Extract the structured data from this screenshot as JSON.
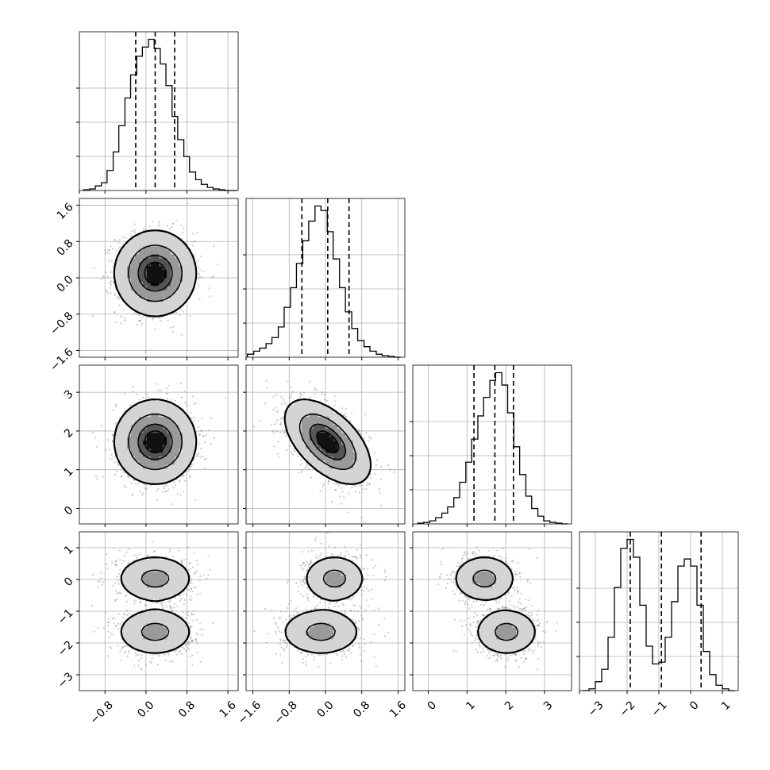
{
  "chart_data": {
    "type": "corner",
    "params": [
      {
        "name": "",
        "range": [
          -1.3,
          1.8
        ],
        "ticks": [
          -0.8,
          0.0,
          0.8,
          1.6
        ],
        "tick_labels": [
          "−0.8",
          "0.0",
          "0.8",
          "1.6"
        ],
        "hist_bins": [
          -1.22,
          -1.1,
          -0.99,
          -0.87,
          -0.76,
          -0.64,
          -0.53,
          -0.41,
          -0.3,
          -0.18,
          -0.07,
          0.05,
          0.16,
          0.28,
          0.39,
          0.51,
          0.62,
          0.74,
          0.85,
          0.97,
          1.08,
          1.2,
          1.31,
          1.43,
          1.54,
          1.66,
          1.77
        ],
        "hist_counts": [
          0.005,
          0.01,
          0.03,
          0.05,
          0.13,
          0.25,
          0.42,
          0.6,
          0.75,
          0.87,
          0.93,
          0.98,
          0.92,
          0.82,
          0.68,
          0.48,
          0.33,
          0.22,
          0.12,
          0.07,
          0.04,
          0.02,
          0.01,
          0.005,
          0.0,
          0.0
        ],
        "quantiles": [
          -0.2,
          0.18,
          0.56
        ]
      },
      {
        "name": "",
        "range": [
          -1.75,
          1.75
        ],
        "ticks": [
          -1.6,
          -0.8,
          0.0,
          0.8,
          1.6
        ],
        "tick_labels": [
          "−1.6",
          "−0.8",
          "0.0",
          "0.8",
          "1.6"
        ],
        "hist_bins": [
          -1.72,
          -1.58,
          -1.45,
          -1.31,
          -1.18,
          -1.04,
          -0.91,
          -0.77,
          -0.64,
          -0.5,
          -0.37,
          -0.23,
          -0.1,
          0.04,
          0.17,
          0.31,
          0.44,
          0.58,
          0.71,
          0.85,
          0.98,
          1.12,
          1.25,
          1.39,
          1.52,
          1.66
        ],
        "hist_counts": [
          0.02,
          0.04,
          0.06,
          0.09,
          0.13,
          0.2,
          0.33,
          0.46,
          0.62,
          0.77,
          0.9,
          1.0,
          0.97,
          0.83,
          0.65,
          0.46,
          0.3,
          0.19,
          0.11,
          0.07,
          0.04,
          0.02,
          0.01,
          0.005,
          0.0
        ],
        "quantiles": [
          -0.52,
          0.05,
          0.52
        ]
      },
      {
        "name": "",
        "range": [
          -0.4,
          3.7
        ],
        "ticks": [
          0,
          1,
          2,
          3
        ],
        "tick_labels": [
          "0",
          "1",
          "2",
          "3"
        ],
        "hist_bins": [
          -0.27,
          -0.12,
          0.04,
          0.19,
          0.35,
          0.5,
          0.66,
          0.81,
          0.97,
          1.12,
          1.28,
          1.43,
          1.59,
          1.74,
          1.9,
          2.05,
          2.21,
          2.36,
          2.52,
          2.67,
          2.83,
          2.98,
          3.14,
          3.29,
          3.45,
          3.6
        ],
        "hist_counts": [
          0.005,
          0.01,
          0.02,
          0.04,
          0.07,
          0.11,
          0.17,
          0.27,
          0.4,
          0.55,
          0.7,
          0.82,
          0.93,
          0.98,
          0.9,
          0.72,
          0.5,
          0.32,
          0.18,
          0.1,
          0.05,
          0.02,
          0.01,
          0.005,
          0.0
        ],
        "quantiles": [
          1.18,
          1.72,
          2.2
        ]
      },
      {
        "name": "",
        "range": [
          -3.5,
          1.5
        ],
        "ticks": [
          -3,
          -2,
          -1,
          0,
          1
        ],
        "tick_labels": [
          "−3",
          "−2",
          "−1",
          "0",
          "1"
        ],
        "hist_bins": [
          -3.4,
          -3.2,
          -3.0,
          -2.8,
          -2.6,
          -2.4,
          -2.2,
          -2.0,
          -1.8,
          -1.6,
          -1.4,
          -1.2,
          -1.0,
          -0.8,
          -0.6,
          -0.4,
          -0.2,
          0.0,
          0.2,
          0.4,
          0.6,
          0.8,
          1.0,
          1.2,
          1.4
        ],
        "hist_counts": [
          0.0,
          0.01,
          0.05,
          0.12,
          0.3,
          0.58,
          0.8,
          0.85,
          0.75,
          0.48,
          0.25,
          0.15,
          0.16,
          0.3,
          0.5,
          0.7,
          0.74,
          0.7,
          0.48,
          0.22,
          0.09,
          0.03,
          0.01,
          0.0
        ],
        "quantiles": [
          -1.9,
          -0.92,
          0.33
        ]
      }
    ],
    "pairs": [
      {
        "row": 1,
        "col": 0,
        "modes": [
          {
            "mx": 0.18,
            "my": 0.1,
            "sx": 0.38,
            "sy": 0.45,
            "rho": 0.0
          }
        ]
      },
      {
        "row": 2,
        "col": 0,
        "modes": [
          {
            "mx": 0.18,
            "my": 1.72,
            "sx": 0.38,
            "sy": 0.52,
            "rho": 0.0
          }
        ]
      },
      {
        "row": 2,
        "col": 1,
        "modes": [
          {
            "mx": 0.05,
            "my": 1.72,
            "sx": 0.45,
            "sy": 0.52,
            "rho": -0.55
          }
        ]
      },
      {
        "row": 3,
        "col": 0,
        "modes": [
          {
            "mx": 0.18,
            "my": 0.03,
            "sx": 0.38,
            "sy": 0.38,
            "rho": 0.0
          },
          {
            "mx": 0.18,
            "my": -1.65,
            "sx": 0.38,
            "sy": 0.38,
            "rho": 0.0
          }
        ]
      },
      {
        "row": 3,
        "col": 1,
        "modes": [
          {
            "mx": 0.2,
            "my": 0.03,
            "sx": 0.35,
            "sy": 0.38,
            "rho": 0.0
          },
          {
            "mx": -0.1,
            "my": -1.65,
            "sx": 0.45,
            "sy": 0.38,
            "rho": 0.0
          }
        ]
      },
      {
        "row": 3,
        "col": 2,
        "modes": [
          {
            "mx": 1.45,
            "my": 0.03,
            "sx": 0.42,
            "sy": 0.38,
            "rho": 0.0
          },
          {
            "mx": 2.02,
            "my": -1.65,
            "sx": 0.42,
            "sy": 0.38,
            "rho": 0.0
          }
        ]
      }
    ],
    "contour_levels": [
      0.11,
      0.39,
      0.68,
      0.86
    ],
    "grid": true,
    "quantile_style": "dashed"
  }
}
